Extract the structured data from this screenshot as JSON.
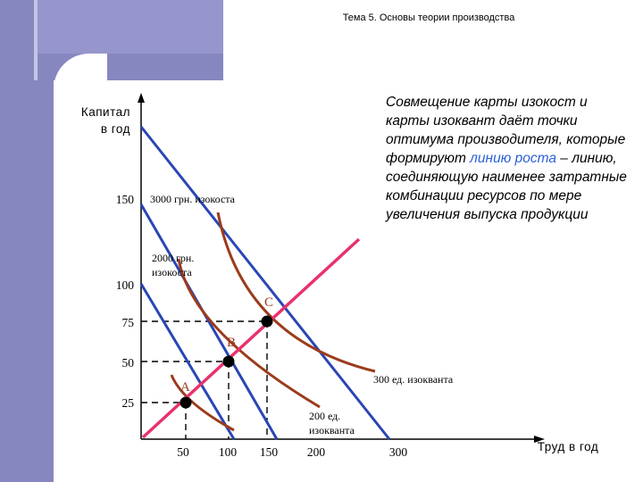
{
  "header": {
    "title": "Тема 5. Основы теории производства"
  },
  "description": {
    "before": "Совмещение карты изокост и карты изоквант даёт точки оптимума производителя, которые формируют ",
    "highlight": "линию роста",
    "after": " – линию, соединяющую наименее затратные комбинации ресурсов по мере увеличения выпуска продукции"
  },
  "axes": {
    "y_label_line1": "Капитал",
    "y_label_line2": "в год",
    "x_label": "Труд в год",
    "y_ticks": [
      "150",
      "100",
      "75",
      "50",
      "25"
    ],
    "x_ticks": [
      "50",
      "100",
      "150",
      "200",
      "300"
    ]
  },
  "isocosts": {
    "label_3000": "3000 грн. изокоста",
    "label_2000_line1": "2000 грн.",
    "label_2000_line2": "изокоста"
  },
  "isoquants": {
    "label_300": "300 ед. изокванта",
    "label_200_line1": "200 ед.",
    "label_200_line2": "изокванта"
  },
  "points": {
    "a": "A",
    "b": "B",
    "c": "C"
  },
  "colors": {
    "isocost": "#2946b5",
    "isoquant": "#9b3b1c",
    "expansion_path": "#e8326c",
    "highlight": "#2b5fd8",
    "deco": "#8787c0"
  }
}
